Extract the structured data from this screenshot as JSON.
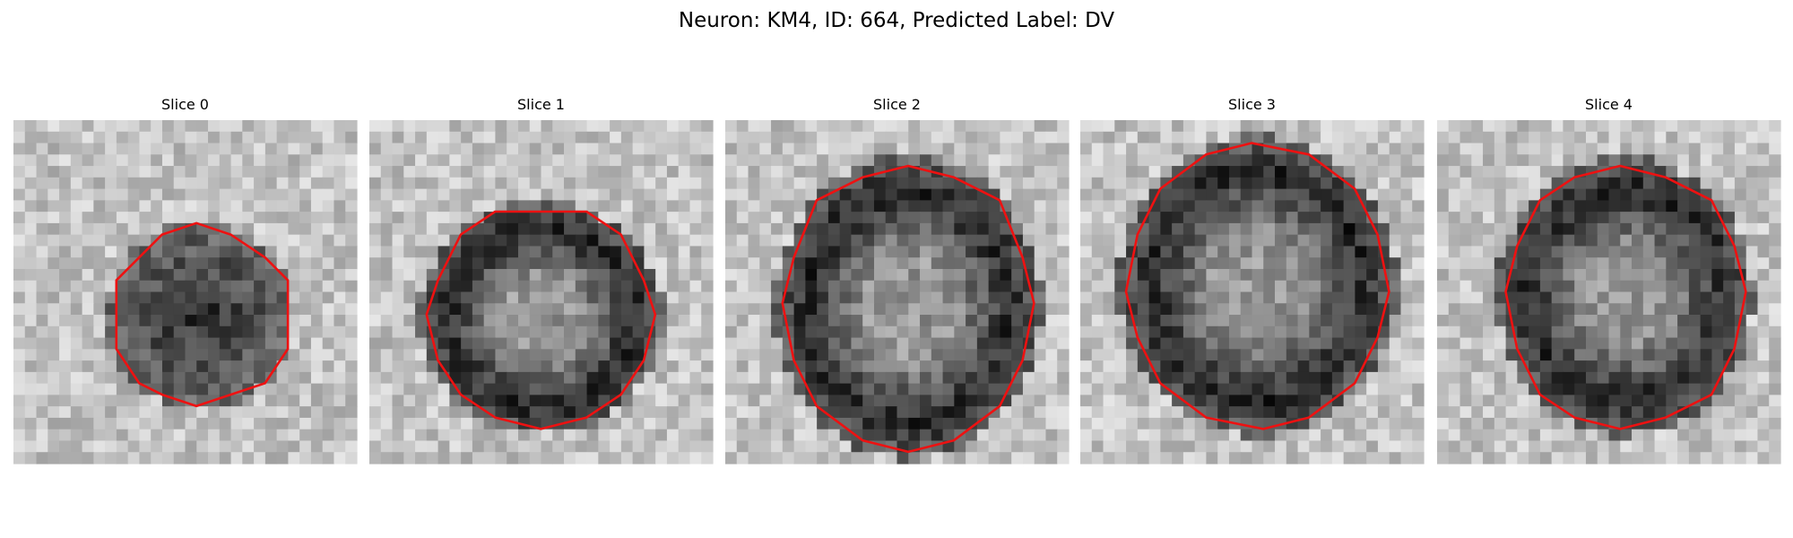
{
  "title": "Neuron: KM4, ID: 664, Predicted Label: DV",
  "panels": [
    {
      "title": "Slice 0"
    },
    {
      "title": "Slice 1"
    },
    {
      "title": "Slice 2"
    },
    {
      "title": "Slice 3"
    },
    {
      "title": "Slice 4"
    }
  ]
}
